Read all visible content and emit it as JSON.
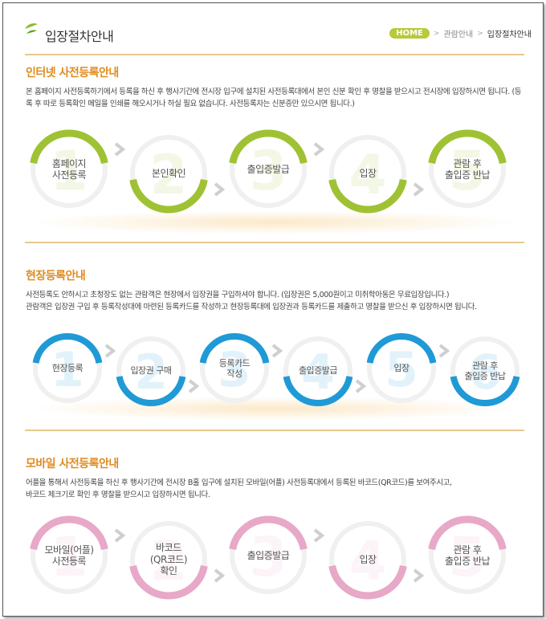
{
  "header": {
    "title": "입장절차안내",
    "breadcrumb": {
      "home": "HOME",
      "parent": "관람안내",
      "current": "입장절차안내"
    }
  },
  "colors": {
    "accent": "#e08a1e",
    "green": "#9fc234",
    "blue": "#1f9ad6",
    "pink": "#e8a8c8",
    "home": "#b8c93a"
  },
  "sections": {
    "online": {
      "title": "인터넷 사전등록안내",
      "desc": "본 홈페이지 사전등록하기에서 등록을 하신 후 행사기간에 전시장 입구에 설치된 사전등록대에서 본인 신분 확인 후 명찰을 받으시고 전시장에 입장하시면 됩니다. (등록 후 따로 등록확인 메일을 인쇄를 해오시거나 하실 필요 없습니다. 사전등록자는 신분증만 있으시면 됩니다.)",
      "steps": [
        {
          "num": "1",
          "label": "홈페이지\n사전등록"
        },
        {
          "num": "2",
          "label": "본인확인"
        },
        {
          "num": "3",
          "label": "출입증발급"
        },
        {
          "num": "4",
          "label": "입장"
        },
        {
          "num": "5",
          "label": "관람 후\n출입증 반납"
        }
      ]
    },
    "onsite": {
      "title": "현장등록안내",
      "desc": " 사전등록도 안하시고 초청장도 없는 관람객은 현장에서 입장권을 구입하셔야 합니다. (입장권은 5,000원이고 미취학아동은 무료입장입니다.)\n관람객은 입장권 구입 후 등록작성대에 마련된 등록카드를 작성하고 현장등록대에 입장권과 등록카드를 제출하고 명찰을 받으신 후 입장하시면 됩니다.",
      "steps": [
        {
          "num": "1",
          "label": "현장등록"
        },
        {
          "num": "2",
          "label": "입장권 구매"
        },
        {
          "num": "3",
          "label": "등록카드\n작성"
        },
        {
          "num": "4",
          "label": "출입증발급"
        },
        {
          "num": "5",
          "label": "입장"
        },
        {
          "num": "6",
          "label": "관람 후\n출입증 반납"
        }
      ]
    },
    "mobile": {
      "title": "모바일 사전등록안내",
      "desc": "어플을 통해서 사전등록을 하신 후 행사기간에 전시장 B홀 입구에 설치된 모바일(어플) 사전등록대에서 등록된 바코드(QR코드)를 보여주시고,\n바코드 체크기로 확인 후 명찰을 받으시고 입장하시면 됩니다.",
      "steps": [
        {
          "num": "1",
          "label": "모바일(어플)\n사전등록"
        },
        {
          "num": "2",
          "label": "바코드\n(QR코드)\n확인"
        },
        {
          "num": "3",
          "label": "출입증발급"
        },
        {
          "num": "4",
          "label": "입장"
        },
        {
          "num": "5",
          "label": "관람 후\n출입증 반납"
        }
      ]
    }
  }
}
